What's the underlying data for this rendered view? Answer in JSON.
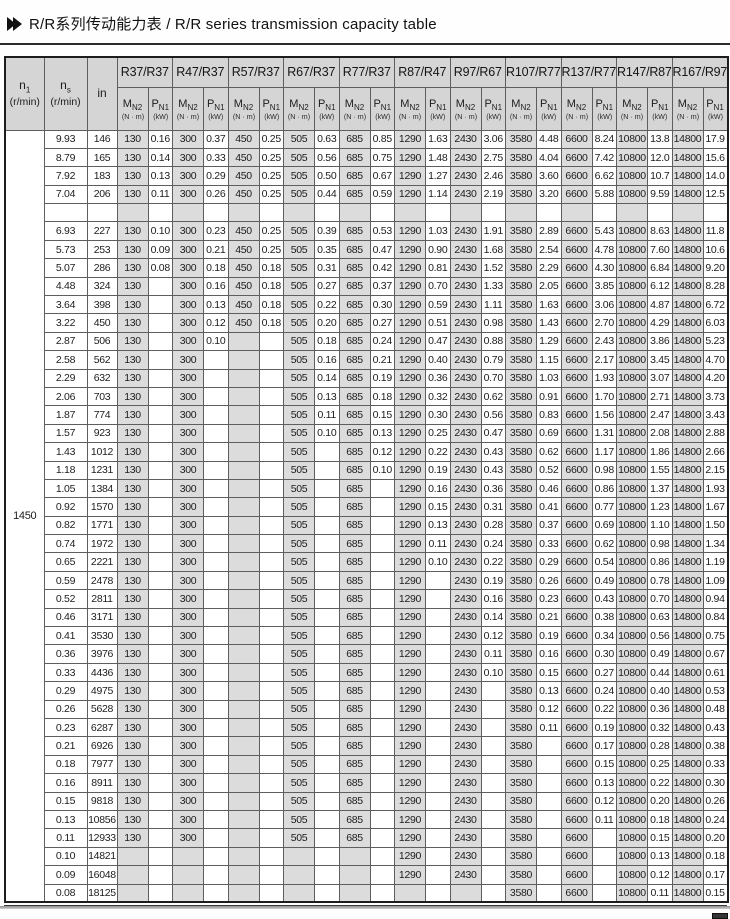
{
  "title": {
    "text": "R/R系列传动能力表 / R/R series transmission capacity table"
  },
  "header": {
    "n1": {
      "base": "n",
      "sub": "1",
      "unit": "(r/min)"
    },
    "ns": {
      "base": "n",
      "sub": "s",
      "unit": "(r/min)"
    },
    "ratio_label": "in",
    "mn2": {
      "base": "M",
      "sub": "N2",
      "unit": "(N · m)"
    },
    "pn1": {
      "base": "P",
      "sub": "N1",
      "unit": "(kW)"
    },
    "groups": [
      "R37/R37",
      "R47/R37",
      "R57/R37",
      "R67/R37",
      "R77/R37",
      "R87/R47",
      "R97/R67",
      "R107/R77",
      "R137/R77",
      "R147/R87",
      "R167/R97"
    ]
  },
  "n1_value": "1450",
  "rows": [
    {
      "ns": "9.93",
      "in": "146",
      "c": [
        "130",
        "0.16",
        "300",
        "0.37",
        "450",
        "0.25",
        "505",
        "0.63",
        "685",
        "0.85",
        "1290",
        "1.63",
        "2430",
        "3.06",
        "3580",
        "4.48",
        "6600",
        "8.24",
        "10800",
        "13.8",
        "14800",
        "17.9"
      ]
    },
    {
      "ns": "8.79",
      "in": "165",
      "c": [
        "130",
        "0.14",
        "300",
        "0.33",
        "450",
        "0.25",
        "505",
        "0.56",
        "685",
        "0.75",
        "1290",
        "1.48",
        "2430",
        "2.75",
        "3580",
        "4.04",
        "6600",
        "7.42",
        "10800",
        "12.0",
        "14800",
        "15.6"
      ]
    },
    {
      "ns": "7.92",
      "in": "183",
      "c": [
        "130",
        "0.13",
        "300",
        "0.29",
        "450",
        "0.25",
        "505",
        "0.50",
        "685",
        "0.67",
        "1290",
        "1.27",
        "2430",
        "2.46",
        "3580",
        "3.60",
        "6600",
        "6.62",
        "10800",
        "10.7",
        "14800",
        "14.0"
      ]
    },
    {
      "ns": "7.04",
      "in": "206",
      "c": [
        "130",
        "0.11",
        "300",
        "0.26",
        "450",
        "0.25",
        "505",
        "0.44",
        "685",
        "0.59",
        "1290",
        "1.14",
        "2430",
        "2.19",
        "3580",
        "3.20",
        "6600",
        "5.88",
        "10800",
        "9.59",
        "14800",
        "12.5"
      ]
    },
    {
      "ns": "",
      "in": "",
      "spacer": true,
      "c": [
        "",
        "",
        "",
        "",
        "",
        "",
        "",
        "",
        "",
        "",
        "",
        "",
        "",
        "",
        "",
        "",
        "",
        "",
        "",
        "",
        "",
        ""
      ]
    },
    {
      "ns": "6.93",
      "in": "227",
      "c": [
        "130",
        "0.10",
        "300",
        "0.23",
        "450",
        "0.25",
        "505",
        "0.39",
        "685",
        "0.53",
        "1290",
        "1.03",
        "2430",
        "1.91",
        "3580",
        "2.89",
        "6600",
        "5.43",
        "10800",
        "8.63",
        "14800",
        "11.8"
      ]
    },
    {
      "ns": "5.73",
      "in": "253",
      "c": [
        "130",
        "0.09",
        "300",
        "0.21",
        "450",
        "0.25",
        "505",
        "0.35",
        "685",
        "0.47",
        "1290",
        "0.90",
        "2430",
        "1.68",
        "3580",
        "2.54",
        "6600",
        "4.78",
        "10800",
        "7.60",
        "14800",
        "10.6"
      ]
    },
    {
      "ns": "5.07",
      "in": "286",
      "c": [
        "130",
        "0.08",
        "300",
        "0.18",
        "450",
        "0.18",
        "505",
        "0.31",
        "685",
        "0.42",
        "1290",
        "0.81",
        "2430",
        "1.52",
        "3580",
        "2.29",
        "6600",
        "4.30",
        "10800",
        "6.84",
        "14800",
        "9.20"
      ]
    },
    {
      "ns": "4.48",
      "in": "324",
      "c": [
        "130",
        "",
        "300",
        "0.16",
        "450",
        "0.18",
        "505",
        "0.27",
        "685",
        "0.37",
        "1290",
        "0.70",
        "2430",
        "1.33",
        "3580",
        "2.05",
        "6600",
        "3.85",
        "10800",
        "6.12",
        "14800",
        "8.28"
      ]
    },
    {
      "ns": "3.64",
      "in": "398",
      "c": [
        "130",
        "",
        "300",
        "0.13",
        "450",
        "0.18",
        "505",
        "0.22",
        "685",
        "0.30",
        "1290",
        "0.59",
        "2430",
        "1.11",
        "3580",
        "1.63",
        "6600",
        "3.06",
        "10800",
        "4.87",
        "14800",
        "6.72"
      ]
    },
    {
      "ns": "3.22",
      "in": "450",
      "c": [
        "130",
        "",
        "300",
        "0.12",
        "450",
        "0.18",
        "505",
        "0.20",
        "685",
        "0.27",
        "1290",
        "0.51",
        "2430",
        "0.98",
        "3580",
        "1.43",
        "6600",
        "2.70",
        "10800",
        "4.29",
        "14800",
        "6.03"
      ]
    },
    {
      "ns": "2.87",
      "in": "506",
      "c": [
        "130",
        "",
        "300",
        "0.10",
        "",
        "",
        "505",
        "0.18",
        "685",
        "0.24",
        "1290",
        "0.47",
        "2430",
        "0.88",
        "3580",
        "1.29",
        "6600",
        "2.43",
        "10800",
        "3.86",
        "14800",
        "5.23"
      ]
    },
    {
      "ns": "2.58",
      "in": "562",
      "c": [
        "130",
        "",
        "300",
        "",
        "",
        "",
        "505",
        "0.16",
        "685",
        "0.21",
        "1290",
        "0.40",
        "2430",
        "0.79",
        "3580",
        "1.15",
        "6600",
        "2.17",
        "10800",
        "3.45",
        "14800",
        "4.70"
      ]
    },
    {
      "ns": "2.29",
      "in": "632",
      "c": [
        "130",
        "",
        "300",
        "",
        "",
        "",
        "505",
        "0.14",
        "685",
        "0.19",
        "1290",
        "0.36",
        "2430",
        "0.70",
        "3580",
        "1.03",
        "6600",
        "1.93",
        "10800",
        "3.07",
        "14800",
        "4.20"
      ]
    },
    {
      "ns": "2.06",
      "in": "703",
      "c": [
        "130",
        "",
        "300",
        "",
        "",
        "",
        "505",
        "0.13",
        "685",
        "0.18",
        "1290",
        "0.32",
        "2430",
        "0.62",
        "3580",
        "0.91",
        "6600",
        "1.70",
        "10800",
        "2.71",
        "14800",
        "3.73"
      ]
    },
    {
      "ns": "1.87",
      "in": "774",
      "c": [
        "130",
        "",
        "300",
        "",
        "",
        "",
        "505",
        "0.11",
        "685",
        "0.15",
        "1290",
        "0.30",
        "2430",
        "0.56",
        "3580",
        "0.83",
        "6600",
        "1.56",
        "10800",
        "2.47",
        "14800",
        "3.43"
      ]
    },
    {
      "ns": "1.57",
      "in": "923",
      "c": [
        "130",
        "",
        "300",
        "",
        "",
        "",
        "505",
        "0.10",
        "685",
        "0.13",
        "1290",
        "0.25",
        "2430",
        "0.47",
        "3580",
        "0.69",
        "6600",
        "1.31",
        "10800",
        "2.08",
        "14800",
        "2.88"
      ]
    },
    {
      "ns": "1.43",
      "in": "1012",
      "c": [
        "130",
        "",
        "300",
        "",
        "",
        "",
        "505",
        "",
        "685",
        "0.12",
        "1290",
        "0.22",
        "2430",
        "0.43",
        "3580",
        "0.62",
        "6600",
        "1.17",
        "10800",
        "1.86",
        "14800",
        "2.66"
      ]
    },
    {
      "ns": "1.18",
      "in": "1231",
      "c": [
        "130",
        "",
        "300",
        "",
        "",
        "",
        "505",
        "",
        "685",
        "0.10",
        "1290",
        "0.19",
        "2430",
        "0.43",
        "3580",
        "0.52",
        "6600",
        "0.98",
        "10800",
        "1.55",
        "14800",
        "2.15"
      ]
    },
    {
      "ns": "1.05",
      "in": "1384",
      "c": [
        "130",
        "",
        "300",
        "",
        "",
        "",
        "505",
        "",
        "685",
        "",
        "1290",
        "0.16",
        "2430",
        "0.36",
        "3580",
        "0.46",
        "6600",
        "0.86",
        "10800",
        "1.37",
        "14800",
        "1.93"
      ]
    },
    {
      "ns": "0.92",
      "in": "1570",
      "c": [
        "130",
        "",
        "300",
        "",
        "",
        "",
        "505",
        "",
        "685",
        "",
        "1290",
        "0.15",
        "2430",
        "0.31",
        "3580",
        "0.41",
        "6600",
        "0.77",
        "10800",
        "1.23",
        "14800",
        "1.67"
      ]
    },
    {
      "ns": "0.82",
      "in": "1771",
      "c": [
        "130",
        "",
        "300",
        "",
        "",
        "",
        "505",
        "",
        "685",
        "",
        "1290",
        "0.13",
        "2430",
        "0.28",
        "3580",
        "0.37",
        "6600",
        "0.69",
        "10800",
        "1.10",
        "14800",
        "1.50"
      ]
    },
    {
      "ns": "0.74",
      "in": "1972",
      "c": [
        "130",
        "",
        "300",
        "",
        "",
        "",
        "505",
        "",
        "685",
        "",
        "1290",
        "0.11",
        "2430",
        "0.24",
        "3580",
        "0.33",
        "6600",
        "0.62",
        "10800",
        "0.98",
        "14800",
        "1.34"
      ]
    },
    {
      "ns": "0.65",
      "in": "2221",
      "c": [
        "130",
        "",
        "300",
        "",
        "",
        "",
        "505",
        "",
        "685",
        "",
        "1290",
        "0.10",
        "2430",
        "0.22",
        "3580",
        "0.29",
        "6600",
        "0.54",
        "10800",
        "0.86",
        "14800",
        "1.19"
      ]
    },
    {
      "ns": "0.59",
      "in": "2478",
      "c": [
        "130",
        "",
        "300",
        "",
        "",
        "",
        "505",
        "",
        "685",
        "",
        "1290",
        "",
        "2430",
        "0.19",
        "3580",
        "0.26",
        "6600",
        "0.49",
        "10800",
        "0.78",
        "14800",
        "1.09"
      ]
    },
    {
      "ns": "0.52",
      "in": "2811",
      "c": [
        "130",
        "",
        "300",
        "",
        "",
        "",
        "505",
        "",
        "685",
        "",
        "1290",
        "",
        "2430",
        "0.16",
        "3580",
        "0.23",
        "6600",
        "0.43",
        "10800",
        "0.70",
        "14800",
        "0.94"
      ]
    },
    {
      "ns": "0.46",
      "in": "3171",
      "c": [
        "130",
        "",
        "300",
        "",
        "",
        "",
        "505",
        "",
        "685",
        "",
        "1290",
        "",
        "2430",
        "0.14",
        "3580",
        "0.21",
        "6600",
        "0.38",
        "10800",
        "0.63",
        "14800",
        "0.84"
      ]
    },
    {
      "ns": "0.41",
      "in": "3530",
      "c": [
        "130",
        "",
        "300",
        "",
        "",
        "",
        "505",
        "",
        "685",
        "",
        "1290",
        "",
        "2430",
        "0.12",
        "3580",
        "0.19",
        "6600",
        "0.34",
        "10800",
        "0.56",
        "14800",
        "0.75"
      ]
    },
    {
      "ns": "0.36",
      "in": "3976",
      "c": [
        "130",
        "",
        "300",
        "",
        "",
        "",
        "505",
        "",
        "685",
        "",
        "1290",
        "",
        "2430",
        "0.11",
        "3580",
        "0.16",
        "6600",
        "0.30",
        "10800",
        "0.49",
        "14800",
        "0.67"
      ]
    },
    {
      "ns": "0.33",
      "in": "4436",
      "c": [
        "130",
        "",
        "300",
        "",
        "",
        "",
        "505",
        "",
        "685",
        "",
        "1290",
        "",
        "2430",
        "0.10",
        "3580",
        "0.15",
        "6600",
        "0.27",
        "10800",
        "0.44",
        "14800",
        "0.61"
      ]
    },
    {
      "ns": "0.29",
      "in": "4975",
      "c": [
        "130",
        "",
        "300",
        "",
        "",
        "",
        "505",
        "",
        "685",
        "",
        "1290",
        "",
        "2430",
        "",
        "3580",
        "0.13",
        "6600",
        "0.24",
        "10800",
        "0.40",
        "14800",
        "0.53"
      ]
    },
    {
      "ns": "0.26",
      "in": "5628",
      "c": [
        "130",
        "",
        "300",
        "",
        "",
        "",
        "505",
        "",
        "685",
        "",
        "1290",
        "",
        "2430",
        "",
        "3580",
        "0.12",
        "6600",
        "0.22",
        "10800",
        "0.36",
        "14800",
        "0.48"
      ]
    },
    {
      "ns": "0.23",
      "in": "6287",
      "c": [
        "130",
        "",
        "300",
        "",
        "",
        "",
        "505",
        "",
        "685",
        "",
        "1290",
        "",
        "2430",
        "",
        "3580",
        "0.11",
        "6600",
        "0.19",
        "10800",
        "0.32",
        "14800",
        "0.43"
      ]
    },
    {
      "ns": "0.21",
      "in": "6926",
      "c": [
        "130",
        "",
        "300",
        "",
        "",
        "",
        "505",
        "",
        "685",
        "",
        "1290",
        "",
        "2430",
        "",
        "3580",
        "",
        "6600",
        "0.17",
        "10800",
        "0.28",
        "14800",
        "0.38"
      ]
    },
    {
      "ns": "0.18",
      "in": "7977",
      "c": [
        "130",
        "",
        "300",
        "",
        "",
        "",
        "505",
        "",
        "685",
        "",
        "1290",
        "",
        "2430",
        "",
        "3580",
        "",
        "6600",
        "0.15",
        "10800",
        "0.25",
        "14800",
        "0.33"
      ]
    },
    {
      "ns": "0.16",
      "in": "8911",
      "c": [
        "130",
        "",
        "300",
        "",
        "",
        "",
        "505",
        "",
        "685",
        "",
        "1290",
        "",
        "2430",
        "",
        "3580",
        "",
        "6600",
        "0.13",
        "10800",
        "0.22",
        "14800",
        "0.30"
      ]
    },
    {
      "ns": "0.15",
      "in": "9818",
      "c": [
        "130",
        "",
        "300",
        "",
        "",
        "",
        "505",
        "",
        "685",
        "",
        "1290",
        "",
        "2430",
        "",
        "3580",
        "",
        "6600",
        "0.12",
        "10800",
        "0.20",
        "14800",
        "0.26"
      ]
    },
    {
      "ns": "0.13",
      "in": "10856",
      "c": [
        "130",
        "",
        "300",
        "",
        "",
        "",
        "505",
        "",
        "685",
        "",
        "1290",
        "",
        "2430",
        "",
        "3580",
        "",
        "6600",
        "0.11",
        "10800",
        "0.18",
        "14800",
        "0.24"
      ]
    },
    {
      "ns": "0.11",
      "in": "12933",
      "c": [
        "130",
        "",
        "300",
        "",
        "",
        "",
        "505",
        "",
        "685",
        "",
        "1290",
        "",
        "2430",
        "",
        "3580",
        "",
        "6600",
        "",
        "10800",
        "0.15",
        "14800",
        "0.20"
      ]
    },
    {
      "ns": "0.10",
      "in": "14821",
      "c": [
        "",
        "",
        "",
        "",
        "",
        "",
        "",
        "",
        "",
        "",
        "1290",
        "",
        "2430",
        "",
        "3580",
        "",
        "6600",
        "",
        "10800",
        "0.13",
        "14800",
        "0.18"
      ]
    },
    {
      "ns": "0.09",
      "in": "16048",
      "c": [
        "",
        "",
        "",
        "",
        "",
        "",
        "",
        "",
        "",
        "",
        "1290",
        "",
        "2430",
        "",
        "3580",
        "",
        "6600",
        "",
        "10800",
        "0.12",
        "14800",
        "0.17"
      ]
    },
    {
      "ns": "0.08",
      "in": "18125",
      "c": [
        "",
        "",
        "",
        "",
        "",
        "",
        "",
        "",
        "",
        "",
        "",
        "",
        "",
        "",
        "3580",
        "",
        "6600",
        "",
        "10800",
        "0.11",
        "14800",
        "0.15"
      ]
    }
  ]
}
